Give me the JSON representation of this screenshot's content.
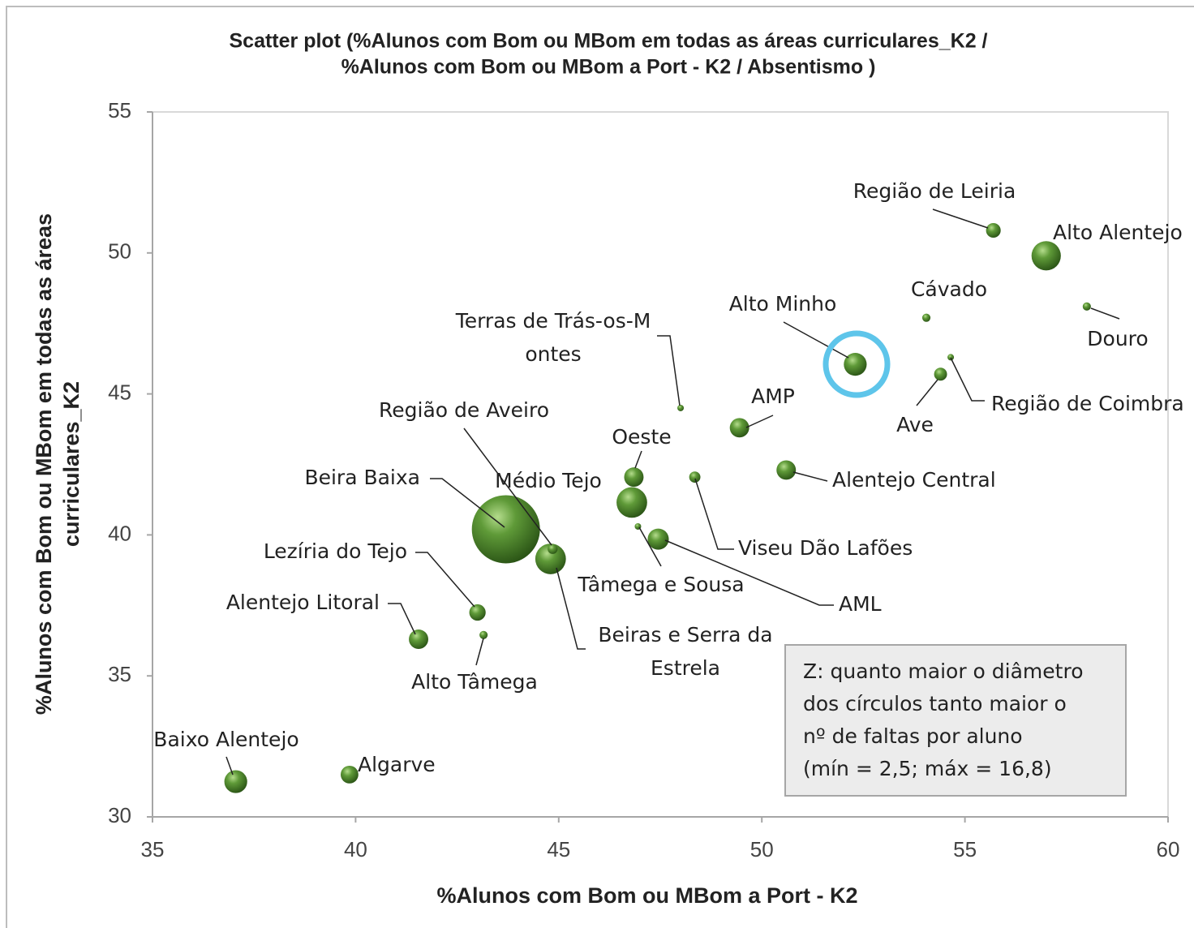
{
  "chart_data": {
    "type": "bubble",
    "title": [
      "Scatter plot (%Alunos com Bom ou MBom em todas as áreas curriculares_K2 /",
      "%Alunos com Bom ou MBom a Port - K2 / Absentismo )"
    ],
    "x_label": "%Alunos com Bom ou MBom a Port - K2",
    "y_label": [
      "%Alunos com Bom ou MBom em todas as áreas",
      "curriculares_K2"
    ],
    "annotation": [
      "Z: quanto maior o diâmetro",
      "dos círculos tanto maior o",
      "nº de faltas por aluno",
      "(mín = 2,5; máx = 16,8)"
    ],
    "xlim": [
      35,
      60
    ],
    "xticks": [
      35,
      40,
      45,
      50,
      55,
      60
    ],
    "ylim": [
      30,
      55
    ],
    "yticks": [
      30,
      35,
      40,
      45,
      50,
      55
    ],
    "color": "#4e8a2e",
    "grid": false,
    "series": [
      {
        "names": [
          "Região de Leiria",
          "Alto Alentejo",
          "Cávado",
          "Douro",
          "Alto Minho",
          "Região de Coimbra",
          "Ave",
          "Terras de Trás-os-Montes",
          "AMP",
          "Oeste",
          "Alentejo Central",
          "Viseu Dão Lafões",
          "Médio Tejo",
          "Beira Baixa",
          "Tâmega e Sousa",
          "AML",
          "Beiras e Serra da Estrela",
          "Região de Aveiro",
          "Lezíria do Tejo",
          "Alto Tâmega",
          "Alentejo Litoral",
          "Baixo Alentejo",
          "Algarve"
        ],
        "x": [
          55.7,
          57.0,
          54.05,
          58.0,
          52.3,
          54.65,
          54.4,
          48.0,
          49.45,
          46.85,
          50.6,
          48.35,
          46.8,
          43.7,
          46.95,
          47.45,
          44.8,
          44.85,
          43.0,
          43.15,
          41.55,
          37.05,
          39.85
        ],
        "values": [
          50.8,
          49.9,
          47.7,
          48.1,
          46.05,
          46.3,
          45.7,
          44.5,
          43.8,
          42.05,
          42.3,
          42.05,
          41.15,
          40.2,
          40.3,
          39.85,
          39.15,
          39.5,
          37.25,
          36.45,
          36.3,
          31.25,
          31.5
        ],
        "sizes": [
          4.4,
          7.8,
          2.9,
          2.9,
          6.3,
          2.5,
          4.0,
          2.5,
          5.5,
          5.5,
          5.5,
          3.6,
          8.1,
          16.8,
          2.5,
          5.9,
          8.1,
          3.3,
          4.8,
          2.9,
          5.5,
          6.3,
          5.1
        ]
      }
    ]
  }
}
